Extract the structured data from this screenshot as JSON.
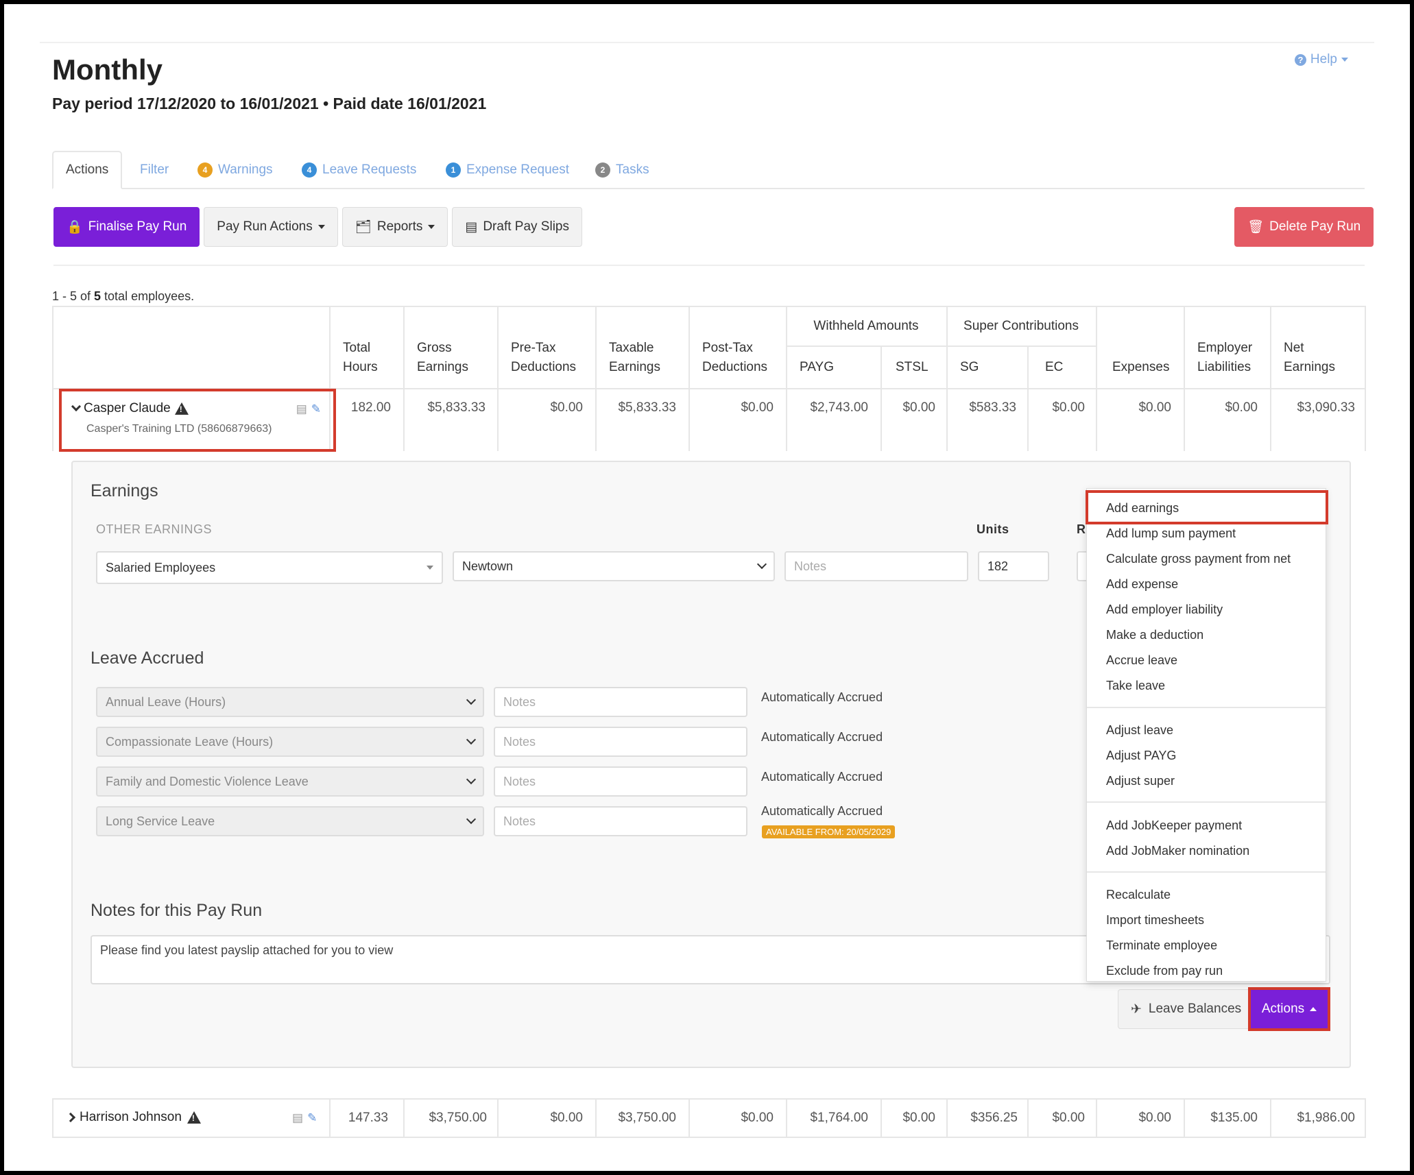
{
  "help": {
    "label": "Help"
  },
  "page": {
    "title": "Monthly",
    "subtitle": "Pay period 17/12/2020 to 16/01/2021 • Paid date 16/01/2021"
  },
  "tabs": [
    {
      "label": "Actions"
    },
    {
      "label": "Filter"
    },
    {
      "label": "Warnings",
      "badge": "4",
      "badge_color": "#e8a020"
    },
    {
      "label": "Leave Requests",
      "badge": "4",
      "badge_color": "#3a8fd8"
    },
    {
      "label": "Expense Request",
      "badge": "1",
      "badge_color": "#3a8fd8"
    },
    {
      "label": "Tasks",
      "badge": "2",
      "badge_color": "#888888"
    }
  ],
  "toolbar": {
    "finalise": "Finalise Pay Run",
    "pay_run_actions": "Pay Run Actions",
    "reports": "Reports",
    "draft_pay_slips": "Draft Pay Slips",
    "delete": "Delete Pay Run"
  },
  "summary": {
    "prefix": "1 - 5 of ",
    "total": "5",
    "suffix": " total employees."
  },
  "table": {
    "headers": {
      "total_hours": [
        "Total",
        "Hours"
      ],
      "gross": [
        "Gross",
        "Earnings"
      ],
      "pretax": [
        "Pre-Tax",
        "Deductions"
      ],
      "taxable": [
        "Taxable",
        "Earnings"
      ],
      "posttax": [
        "Post-Tax",
        "Deductions"
      ],
      "withheld": "Withheld Amounts",
      "payg": "PAYG",
      "stsl": "STSL",
      "super": "Super Contributions",
      "sg": "SG",
      "ec": "EC",
      "expenses": "Expenses",
      "employer": [
        "Employer",
        "Liabilities"
      ],
      "net": [
        "Net",
        "Earnings"
      ]
    },
    "rows": [
      {
        "name": "Casper Claude",
        "company": "Casper's Training LTD (58606879663)",
        "values": [
          "182.00",
          "$5,833.33",
          "$0.00",
          "$5,833.33",
          "$0.00",
          "$2,743.00",
          "$0.00",
          "$583.33",
          "$0.00",
          "$0.00",
          "$0.00",
          "$3,090.33"
        ]
      },
      {
        "name": "Harrison Johnson",
        "values": [
          "147.33",
          "$3,750.00",
          "$0.00",
          "$3,750.00",
          "$0.00",
          "$1,764.00",
          "$0.00",
          "$356.25",
          "$0.00",
          "$0.00",
          "$135.00",
          "$1,986.00"
        ]
      }
    ]
  },
  "earnings": {
    "title": "Earnings",
    "other_label": "OTHER EARNINGS",
    "units_label": "Units",
    "rate_label_partial": "R",
    "category": "Salaried Employees",
    "location": "Newtown",
    "notes_placeholder": "Notes",
    "units": "182"
  },
  "leave": {
    "title": "Leave Accrued",
    "items": [
      {
        "type": "Annual Leave (Hours)",
        "notes_placeholder": "Notes",
        "status": "Automatically Accrued"
      },
      {
        "type": "Compassionate Leave (Hours)",
        "notes_placeholder": "Notes",
        "status": "Automatically Accrued"
      },
      {
        "type": "Family and Domestic Violence Leave",
        "notes_placeholder": "Notes",
        "status": "Automatically Accrued"
      },
      {
        "type": "Long Service Leave",
        "notes_placeholder": "Notes",
        "status": "Automatically Accrued",
        "badge": "AVAILABLE FROM: 20/05/2029"
      }
    ]
  },
  "notes": {
    "title": "Notes for this Pay Run",
    "value": "Please find you latest payslip attached for you to view"
  },
  "buttons": {
    "leave_balances": "Leave Balances",
    "actions": "Actions"
  },
  "actions_menu": {
    "groups": [
      [
        "Add earnings",
        "Add lump sum payment",
        "Calculate gross payment from net",
        "Add expense",
        "Add employer liability",
        "Make a deduction",
        "Accrue leave",
        "Take leave"
      ],
      [
        "Adjust leave",
        "Adjust PAYG",
        "Adjust super"
      ],
      [
        "Add JobKeeper payment",
        "Add JobMaker nomination"
      ],
      [
        "Recalculate",
        "Import timesheets",
        "Terminate employee",
        "Exclude from pay run"
      ]
    ]
  },
  "colors": {
    "primary": "#7a1fd8",
    "danger": "#e45a64",
    "highlight": "#d33b2c",
    "link": "#7fa8e0"
  }
}
